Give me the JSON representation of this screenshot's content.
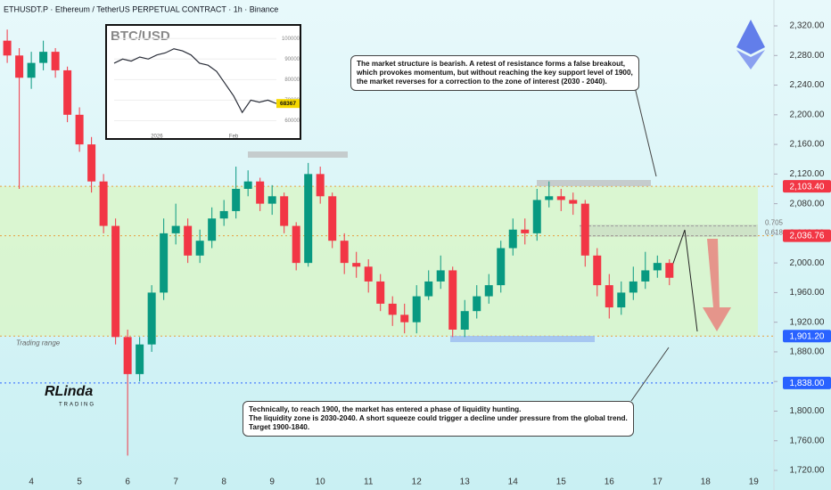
{
  "chart_data": [
    {
      "type": "candlestick",
      "title": "ETHUSDT.P · Ethereum / TetherUS PERPETUAL CONTRACT · 1h · Binance",
      "x": [
        3.5,
        3.75,
        4,
        4.25,
        4.5,
        4.75,
        5,
        5.25,
        5.5,
        5.75,
        6,
        6.25,
        6.5,
        6.75,
        7,
        7.25,
        7.5,
        7.75,
        8,
        8.25,
        8.5,
        8.75,
        9,
        9.25,
        9.5,
        9.75,
        10,
        10.25,
        10.5,
        10.75,
        11,
        11.25,
        11.5,
        11.75,
        12,
        12.25,
        12.5,
        12.75,
        13,
        13.25,
        13.5,
        13.75,
        14,
        14.25,
        14.5,
        14.75,
        15,
        15.25,
        15.5,
        15.75,
        16,
        16.25,
        16.5,
        16.75,
        17,
        17.25
      ],
      "open": [
        2300,
        2280,
        2250,
        2270,
        2285,
        2260,
        2200,
        2160,
        2110,
        2050,
        1900,
        1850,
        1890,
        1960,
        2040,
        2050,
        2010,
        2030,
        2060,
        2070,
        2100,
        2110,
        2080,
        2090,
        2050,
        2000,
        2120,
        2090,
        2030,
        2000,
        1995,
        1975,
        1945,
        1930,
        1920,
        1955,
        1975,
        1990,
        1910,
        1935,
        1955,
        1970,
        2020,
        2045,
        2040,
        2085,
        2090,
        2085,
        2080,
        2010,
        1970,
        1940,
        1960,
        1975,
        1990,
        2000
      ],
      "high": [
        2315,
        2290,
        2285,
        2300,
        2290,
        2265,
        2210,
        2170,
        2120,
        2060,
        1910,
        1900,
        1970,
        2060,
        2080,
        2060,
        2045,
        2075,
        2085,
        2130,
        2125,
        2115,
        2105,
        2095,
        2055,
        2135,
        2130,
        2095,
        2040,
        2015,
        2005,
        1985,
        1955,
        1945,
        1970,
        1990,
        2010,
        1995,
        1950,
        1970,
        1985,
        2030,
        2060,
        2060,
        2100,
        2110,
        2100,
        2095,
        2085,
        2020,
        1985,
        1975,
        1995,
        2015,
        2010,
        2005
      ],
      "low": [
        2270,
        2100,
        2235,
        2260,
        2250,
        2190,
        2150,
        2095,
        2040,
        1890,
        1740,
        1840,
        1880,
        1950,
        2025,
        2000,
        2000,
        2020,
        2050,
        2060,
        2090,
        2070,
        2065,
        2040,
        1990,
        1995,
        2080,
        2020,
        1985,
        1980,
        1960,
        1935,
        1915,
        1905,
        1905,
        1950,
        1965,
        1900,
        1900,
        1925,
        1945,
        1960,
        2010,
        2025,
        2030,
        2075,
        2070,
        2065,
        1995,
        1955,
        1925,
        1930,
        1950,
        1965,
        1980,
        1970
      ],
      "close": [
        2280,
        2250,
        2270,
        2285,
        2260,
        2200,
        2160,
        2110,
        2050,
        1900,
        1850,
        1890,
        1960,
        2040,
        2050,
        2010,
        2030,
        2060,
        2070,
        2100,
        2110,
        2080,
        2090,
        2050,
        2000,
        2120,
        2090,
        2030,
        2000,
        1995,
        1975,
        1945,
        1930,
        1920,
        1955,
        1975,
        1990,
        1910,
        1935,
        1955,
        1970,
        2020,
        2045,
        2040,
        2085,
        2090,
        2085,
        2080,
        2010,
        1970,
        1940,
        1960,
        1975,
        1990,
        2000,
        1980
      ],
      "up_color": "#089981",
      "down_color": "#f23645",
      "xlim": [
        3.35,
        19.42
      ],
      "xticks": [
        4,
        5,
        6,
        7,
        8,
        9,
        10,
        11,
        12,
        13,
        14,
        15,
        16,
        17,
        18,
        19
      ],
      "ylim": [
        1717.6,
        2354.9
      ],
      "yticks": [
        {
          "value": 1720,
          "label": "1,720.00"
        },
        {
          "value": 1760,
          "label": "1,760.00"
        },
        {
          "value": 1800,
          "label": "1,800.00"
        },
        {
          "value": 1840,
          "label": "1,840.00"
        },
        {
          "value": 1880,
          "label": "1,880.00"
        },
        {
          "value": 1920,
          "label": "1,920.00"
        },
        {
          "value": 1960,
          "label": "1,960.00"
        },
        {
          "value": 2000,
          "label": "2,000.00"
        },
        {
          "value": 2040,
          "label": "2,040.00"
        },
        {
          "value": 2080,
          "label": "2,080.00"
        },
        {
          "value": 2120,
          "label": "2,120.00"
        },
        {
          "value": 2160,
          "label": "2,160.00"
        },
        {
          "value": 2200,
          "label": "2,200.00"
        },
        {
          "value": 2240,
          "label": "2,240.00"
        },
        {
          "value": 2280,
          "label": "2,280.00"
        },
        {
          "value": 2320,
          "label": "2,320.00"
        }
      ],
      "levels": [
        {
          "value": 2103.4,
          "label": "2,103.40",
          "color": "#f23645"
        },
        {
          "value": 2036.76,
          "label": "2,036.76",
          "color": "#f23645"
        },
        {
          "value": 1901.2,
          "label": "1,901.20",
          "color": "#2962ff"
        },
        {
          "value": 1838,
          "label": "1,838.00",
          "color": "#2962ff"
        }
      ],
      "fib": [
        {
          "value": 2050,
          "label": "0.705"
        },
        {
          "value": 2036.76,
          "label": "0.618"
        }
      ],
      "range": {
        "label": "Trading range",
        "low": 1901.2,
        "high": 2103.4
      }
    },
    {
      "type": "line",
      "title": "BTC/USD",
      "categories": [
        null,
        null,
        null,
        null,
        null,
        "2026",
        null,
        null,
        null,
        null,
        null,
        null,
        null,
        null,
        "Feb",
        null,
        null,
        null,
        null,
        null
      ],
      "values": [
        88000,
        90000,
        89000,
        91000,
        90000,
        92000,
        93000,
        95000,
        94000,
        92000,
        88000,
        87000,
        84000,
        78000,
        72000,
        64000,
        70000,
        69000,
        70000,
        68367
      ],
      "color": "#2a2e39",
      "ylim": [
        55000,
        104000
      ],
      "yticks": [
        60000,
        70000,
        80000,
        90000,
        100000
      ],
      "last_price": 68367
    }
  ],
  "annotations": [
    {
      "lines": [
        "The market structure is bearish. A retest of resistance forms a false breakout,",
        "which provokes momentum, but without reaching the key support level of 1900,",
        "the market reverses for a correction to the zone of interest (2030 - 2040)."
      ]
    },
    {
      "lines": [
        "Technically, to reach 1900, the market has entered a phase of liquidity hunting.",
        "The liquidity zone is 2030-2040. A short squeeze could trigger a decline under pressure from the global trend.",
        "Target 1900-1840."
      ]
    }
  ],
  "logo": {
    "name": "RLinda",
    "tag": "TRADING"
  }
}
